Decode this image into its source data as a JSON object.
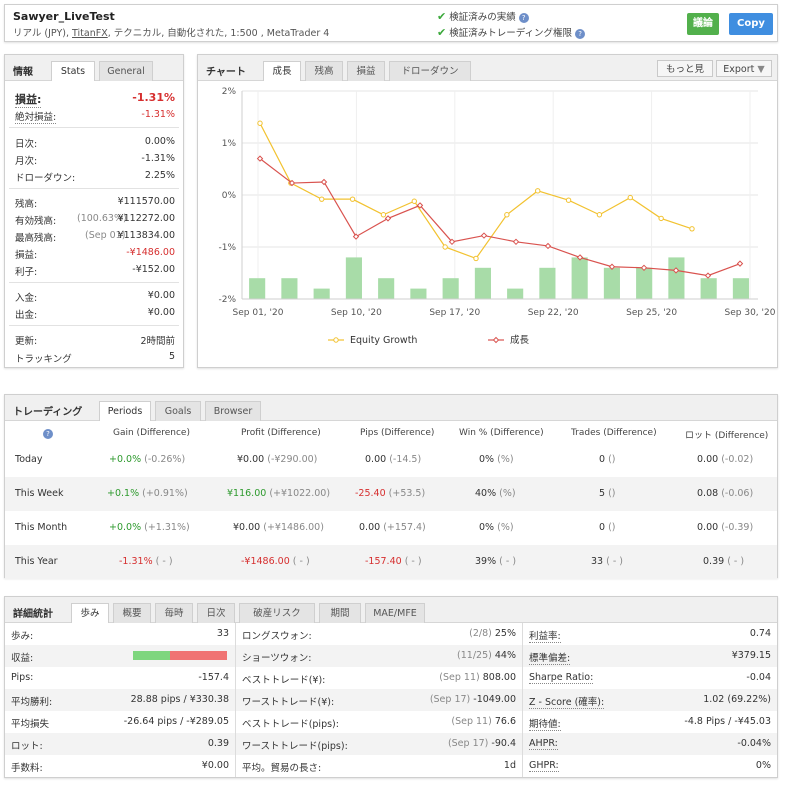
{
  "header": {
    "title": "Sawyer_LiveTest",
    "subtitle_pre": "リアル (JPY), ",
    "broker": "TitanFX",
    "subtitle_post": ", テクニカル, 自動化された, 1:500 , MetaTrader 4",
    "verified1": "検証済みの実績",
    "verified2": "検証済みトレーディング権限",
    "discuss_label": "議論",
    "copy_label": "Copy"
  },
  "info": {
    "title": "情報",
    "tabs": [
      "Stats",
      "General"
    ],
    "gain_label": "損益:",
    "gain_value": "-1.31%",
    "abs_gain_label": "絶対損益:",
    "abs_gain_value": "-1.31%",
    "daily_label": "日次:",
    "daily_value": "0.00%",
    "monthly_label": "月次:",
    "monthly_value": "-1.31%",
    "drawdown_label": "ドローダウン:",
    "drawdown_value": "2.25%",
    "balance_label": "残高:",
    "balance_value": "¥111570.00",
    "equity_label": "有効残高:",
    "equity_note": "(100.63%)",
    "equity_value": "¥112272.00",
    "highest_label": "最高残高:",
    "highest_note": "(Sep 01)",
    "highest_value": "¥113834.00",
    "profit_label": "損益:",
    "profit_value": "-¥1486.00",
    "interest_label": "利子:",
    "interest_value": "-¥152.00",
    "deposits_label": "入金:",
    "deposits_value": "¥0.00",
    "withdrawals_label": "出金:",
    "withdrawals_value": "¥0.00",
    "updated_label": "更新:",
    "updated_value": "2時間前",
    "tracking_label": "トラッキング",
    "tracking_value": "5"
  },
  "chart_panel": {
    "title": "チャート",
    "tabs": [
      "成長",
      "残高",
      "損益",
      "ドローダウン"
    ],
    "more_label": "もっと見",
    "export_label": "Export"
  },
  "chart_data": {
    "type": "line",
    "x_ticks": [
      "Sep 01, '20",
      "Sep 10, '20",
      "Sep 17, '20",
      "Sep 22, '20",
      "Sep 25, '20",
      "Sep 30, '20"
    ],
    "y_ticks": [
      "2%",
      "1%",
      "0%",
      "-1%",
      "-2%"
    ],
    "ylim": [
      -2,
      2
    ],
    "series": [
      {
        "name": "Equity Growth",
        "color": "#f2c230",
        "values": [
          1.38,
          0.23,
          -0.08,
          -0.08,
          -0.38,
          -0.12,
          -1.0,
          -1.22,
          -0.38,
          0.08,
          -0.1,
          -0.38,
          -0.05,
          -0.45,
          -0.65
        ]
      },
      {
        "name": "成長",
        "color": "#d9534f",
        "values": [
          0.7,
          0.23,
          0.25,
          -0.8,
          -0.45,
          -0.2,
          -0.9,
          -0.78,
          -0.9,
          -0.98,
          -1.2,
          -1.38,
          -1.4,
          -1.45,
          -1.55,
          -1.32
        ]
      }
    ],
    "bars": {
      "color": "#a8dca8",
      "values": [
        -1.6,
        -1.6,
        -1.8,
        -1.2,
        -1.6,
        -1.8,
        -1.6,
        -1.4,
        -1.8,
        -1.4,
        -1.2,
        -1.4,
        -1.4,
        -1.2,
        -1.6,
        -1.6
      ]
    }
  },
  "trading": {
    "title": "トレーディング",
    "tabs": [
      "Periods",
      "Goals",
      "Browser"
    ],
    "columns": [
      "Gain (Difference)",
      "Profit (Difference)",
      "Pips (Difference)",
      "Win % (Difference)",
      "Trades (Difference)",
      "ロット (Difference)"
    ],
    "rows": [
      {
        "period": "Today",
        "gain": "+0.0%",
        "gain_diff": "(-0.26%)",
        "profit": "¥0.00",
        "profit_diff": "(-¥290.00)",
        "pips": "0.00",
        "pips_diff": "(-14.5)",
        "win": "0%",
        "win_diff": "(%)",
        "trades": "0",
        "trades_diff": "()",
        "lots": "0.00",
        "lots_diff": "(-0.02)"
      },
      {
        "period": "This Week",
        "gain": "+0.1%",
        "gain_diff": "(+0.91%)",
        "profit": "¥116.00",
        "profit_diff": "(+¥1022.00)",
        "pips": "-25.40",
        "pips_diff": "(+53.5)",
        "win": "40%",
        "win_diff": "(%)",
        "trades": "5",
        "trades_diff": "()",
        "lots": "0.08",
        "lots_diff": "(-0.06)"
      },
      {
        "period": "This Month",
        "gain": "+0.0%",
        "gain_diff": "(+1.31%)",
        "profit": "¥0.00",
        "profit_diff": "(+¥1486.00)",
        "pips": "0.00",
        "pips_diff": "(+157.4)",
        "win": "0%",
        "win_diff": "(%)",
        "trades": "0",
        "trades_diff": "()",
        "lots": "0.00",
        "lots_diff": "(-0.39)"
      },
      {
        "period": "This Year",
        "gain": "-1.31%",
        "gain_diff": "( - )",
        "profit": "-¥1486.00",
        "profit_diff": "( - )",
        "pips": "-157.40",
        "pips_diff": "( - )",
        "win": "39%",
        "win_diff": "( - )",
        "trades": "33",
        "trades_diff": "( - )",
        "lots": "0.39",
        "lots_diff": "( - )"
      }
    ]
  },
  "stats": {
    "title": "詳細統計",
    "tabs": [
      "歩み",
      "概要",
      "毎時",
      "日次",
      "破産リスク",
      "期間",
      "MAE/MFE"
    ],
    "col1": [
      {
        "label": "歩み:",
        "value": "33"
      },
      {
        "label": "収益:",
        "value": ""
      },
      {
        "label": "Pips:",
        "value": "-157.4"
      },
      {
        "label": "平均勝利:",
        "value": "28.88 pips / ¥330.38"
      },
      {
        "label": "平均損失",
        "value": "-26.64 pips / -¥289.05"
      },
      {
        "label": "ロット:",
        "value": "0.39"
      },
      {
        "label": "手数料:",
        "value": "¥0.00"
      }
    ],
    "profitability": {
      "win_fraction": 0.39,
      "win_color": "#7ed67e",
      "loss_color": "#f07373"
    },
    "col2": [
      {
        "label": "ロングスウォン:",
        "note": "(2/8)",
        "value": "25%"
      },
      {
        "label": "ショーツウォン:",
        "note": "(11/25)",
        "value": "44%"
      },
      {
        "label": "ベストトレード(¥):",
        "note": "(Sep 11)",
        "value": "808.00"
      },
      {
        "label": "ワーストトレード(¥):",
        "note": "(Sep 17)",
        "value": "-1049.00"
      },
      {
        "label": "ベストトレード(pips):",
        "note": "(Sep 11)",
        "value": "76.6"
      },
      {
        "label": "ワーストトレード(pips):",
        "note": "(Sep 17)",
        "value": "-90.4"
      },
      {
        "label": "平均。貿易の長さ:",
        "note": "",
        "value": "1d"
      }
    ],
    "col3": [
      {
        "label": "利益率:",
        "value": "0.74"
      },
      {
        "label": "標準偏差:",
        "value": "¥379.15"
      },
      {
        "label": "Sharpe Ratio:",
        "value": "-0.04"
      },
      {
        "label": "Z - Score (確率):",
        "value": "1.02 (69.22%)"
      },
      {
        "label": "期待値:",
        "value": "-4.8 Pips / -¥45.03"
      },
      {
        "label": "AHPR:",
        "value": "-0.04%"
      },
      {
        "label": "GHPR:",
        "value": "0%"
      }
    ]
  }
}
